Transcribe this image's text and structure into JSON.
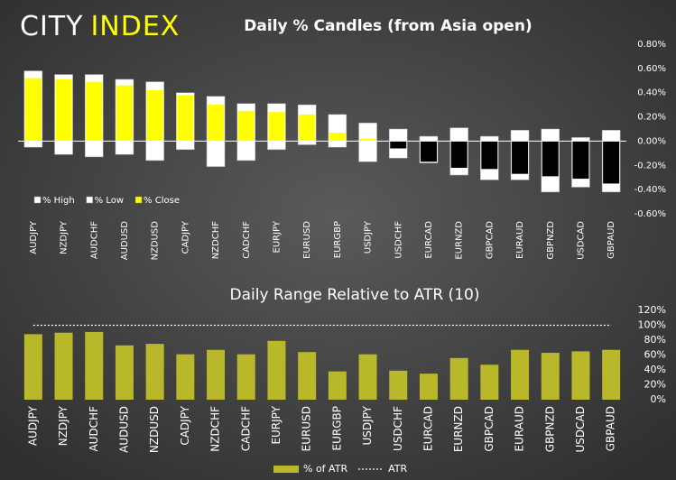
{
  "logo": {
    "part1": "CITY",
    "part2": "INDEX"
  },
  "chart_data": [
    {
      "type": "candle",
      "title": "Daily % Candles (from Asia open)",
      "categories": [
        "AUDJPY",
        "NZDJPY",
        "AUDCHF",
        "AUDUSD",
        "NZDUSD",
        "CADJPY",
        "NZDCHF",
        "CADCHF",
        "EURJPY",
        "EURUSD",
        "EURGBP",
        "USDJPY",
        "USDCHF",
        "EURCAD",
        "EURNZD",
        "GBPCAD",
        "EURAUD",
        "GBPNZD",
        "USDCAD",
        "GBPAUD"
      ],
      "series": [
        {
          "name": "% High",
          "color": "#ffffff",
          "values": [
            0.58,
            0.55,
            0.55,
            0.51,
            0.49,
            0.4,
            0.37,
            0.31,
            0.31,
            0.3,
            0.22,
            0.15,
            0.1,
            0.04,
            0.11,
            0.04,
            0.09,
            0.1,
            0.03,
            0.09
          ]
        },
        {
          "name": "% Low",
          "color": "#ffffff",
          "values": [
            -0.05,
            -0.11,
            -0.13,
            -0.11,
            -0.16,
            -0.07,
            -0.21,
            -0.16,
            -0.07,
            -0.03,
            -0.05,
            -0.17,
            -0.14,
            -0.18,
            -0.28,
            -0.32,
            -0.32,
            -0.42,
            -0.38,
            -0.42
          ]
        },
        {
          "name": "% Close",
          "color": "#ffff00",
          "negative_color": "#000000",
          "values": [
            0.52,
            0.51,
            0.49,
            0.46,
            0.42,
            0.38,
            0.3,
            0.25,
            0.24,
            0.22,
            0.07,
            0.02,
            -0.06,
            -0.17,
            -0.22,
            -0.23,
            -0.27,
            -0.29,
            -0.31,
            -0.35
          ]
        }
      ],
      "ylim": [
        -0.6,
        0.8
      ],
      "yticks": [
        {
          "value": -0.6,
          "label": "-0.60%"
        },
        {
          "value": -0.4,
          "label": "-0.40%"
        },
        {
          "value": -0.2,
          "label": "-0.20%"
        },
        {
          "value": 0,
          "label": "0.00%"
        },
        {
          "value": 0.2,
          "label": "0.20%"
        },
        {
          "value": 0.4,
          "label": "0.40%"
        },
        {
          "value": 0.6,
          "label": "0.60%"
        },
        {
          "value": 0.8,
          "label": "0.80%"
        }
      ],
      "grid": false,
      "legend": "bottom-left"
    },
    {
      "type": "bar",
      "title": "Daily Range Relative to ATR (10)",
      "categories": [
        "AUDJPY",
        "NZDJPY",
        "AUDCHF",
        "AUDUSD",
        "NZDUSD",
        "CADJPY",
        "NZDCHF",
        "CADCHF",
        "EURJPY",
        "EURUSD",
        "EURGBP",
        "USDJPY",
        "USDCHF",
        "EURCAD",
        "EURNZD",
        "GBPCAD",
        "EURAUD",
        "GBPNZD",
        "USDCAD",
        "GBPAUD"
      ],
      "series": [
        {
          "name": "% of ATR",
          "color": "#b8b82a",
          "values": [
            88,
            90,
            91,
            73,
            75,
            61,
            67,
            61,
            79,
            64,
            38,
            61,
            39,
            35,
            56,
            47,
            67,
            63,
            65,
            67
          ]
        },
        {
          "name": "ATR",
          "color": "#ffffff",
          "style": "dotted",
          "values": [
            100,
            100,
            100,
            100,
            100,
            100,
            100,
            100,
            100,
            100,
            100,
            100,
            100,
            100,
            100,
            100,
            100,
            100,
            100,
            100
          ]
        }
      ],
      "ylim": [
        0,
        120
      ],
      "yticks": [
        {
          "value": 0,
          "label": "0%"
        },
        {
          "value": 20,
          "label": "20%"
        },
        {
          "value": 40,
          "label": "40%"
        },
        {
          "value": 60,
          "label": "60%"
        },
        {
          "value": 80,
          "label": "80%"
        },
        {
          "value": 100,
          "label": "100%"
        },
        {
          "value": 120,
          "label": "120%"
        }
      ],
      "grid": false,
      "legend": "bottom"
    }
  ]
}
